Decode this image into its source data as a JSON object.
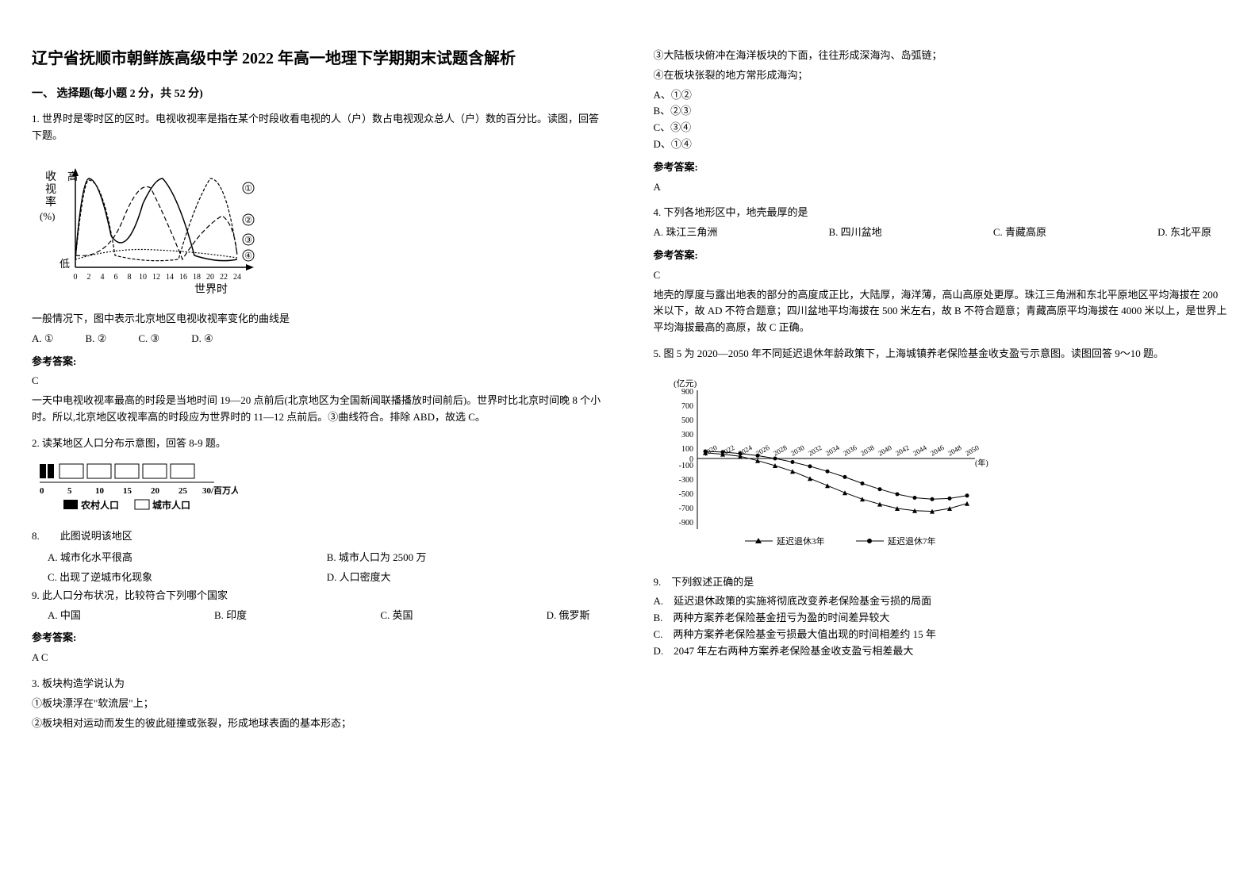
{
  "title": "辽宁省抚顺市朝鲜族高级中学 2022 年高一地理下学期期末试题含解析",
  "section1": {
    "header": "一、 选择题(每小题 2 分，共 52 分)"
  },
  "q1": {
    "intro": "1. 世界时是零时区的区时。电视收视率是指在某个时段收看电视的人（户）数占电视观众总人（户）数的百分比。读图，回答下题。",
    "chart": {
      "ylabel_line1": "收",
      "ylabel_line2": "视",
      "ylabel_line3": "率",
      "ylabel_unit": "(%)",
      "y_high": "高",
      "y_low": "低",
      "xlabel": "世界时",
      "xticks": [
        "0",
        "2",
        "4",
        "6",
        "8",
        "10",
        "12",
        "14",
        "16",
        "18",
        "20",
        "22",
        "24"
      ],
      "curves": {
        "curve1_label": "①",
        "curve2_label": "②",
        "curve3_label": "③",
        "curve4_label": "④"
      },
      "stroke_color": "#000000",
      "dash_patterns": [
        "4,2",
        "6,3",
        "none",
        "2,2"
      ],
      "line_width": 1.2
    },
    "question": "一般情况下，图中表示北京地区电视收视率变化的曲线是",
    "options": {
      "a": "A. ①",
      "b": "B. ②",
      "c": "C. ③",
      "d": "D. ④"
    },
    "answer_label": "参考答案:",
    "answer": "C",
    "explanation": "一天中电视收视率最高的时段是当地时间 19—20 点前后(北京地区为全国新闻联播播放时间前后)。世界时比北京时间晚 8 个小时。所以,北京地区收视率高的时段应为世界时的 11—12 点前后。③曲线符合。排除 ABD，故选 C。"
  },
  "q2": {
    "intro": "2. 读某地区人口分布示意图，回答 8-9 题。",
    "chart": {
      "xticks": [
        "0",
        "5",
        "10",
        "15",
        "20",
        "25",
        "30/百万人"
      ],
      "legend_rural": "农村人口",
      "legend_urban": "城市人口",
      "rural_value": 3,
      "urban_value": 27,
      "rural_color": "#000000",
      "urban_color": "#ffffff",
      "border_color": "#000000"
    },
    "q8": {
      "text": "8.　　此图说明该地区",
      "options": {
        "a": "A. 城市化水平很高",
        "b": "B. 城市人口为 2500 万",
        "c": "C. 出现了逆城市化现象",
        "d": "D. 人口密度大"
      }
    },
    "q9": {
      "text": "9. 此人口分布状况，比较符合下列哪个国家",
      "options": {
        "a": "A. 中国",
        "b": "B. 印度",
        "c": "C. 英国",
        "d": "D. 俄罗斯"
      }
    },
    "answer_label": "参考答案:",
    "answer": "A  C"
  },
  "q3": {
    "intro": "3. 板块构造学说认为",
    "stmt1": "①板块漂浮在\"软流层\"上；",
    "stmt2": "②板块相对运动而发生的彼此碰撞或张裂，形成地球表面的基本形态；",
    "stmt3": "③大陆板块俯冲在海洋板块的下面，往往形成深海沟、岛弧链；",
    "stmt4": "④在板块张裂的地方常形成海沟；",
    "options": {
      "a": "A、①②",
      "b": "B、②③",
      "c": "C、③④",
      "d": "D、①④"
    },
    "answer_label": "参考答案:",
    "answer": "A"
  },
  "q4": {
    "intro": "4. 下列各地形区中，地壳最厚的是",
    "options": {
      "a": "A. 珠江三角洲",
      "b": "B. 四川盆地",
      "c": "C. 青藏高原",
      "d": "D. 东北平原"
    },
    "answer_label": "参考答案:",
    "answer": "C",
    "explanation": "地壳的厚度与露出地表的部分的高度成正比，大陆厚，海洋薄，高山高原处更厚。珠江三角洲和东北平原地区平均海拔在 200 米以下，故 AD 不符合题意；四川盆地平均海拔在 500 米左右，故 B 不符合题意；青藏高原平均海拔在 4000 米以上，是世界上平均海拔最高的高原，故 C 正确。"
  },
  "q5": {
    "intro": "5. 图 5 为 2020—2050 年不同延迟退休年龄政策下，上海城镇养老保险基金收支盈亏示意图。读图回答 9～10 题。",
    "chart": {
      "ylabel": "(亿元)",
      "yticks": [
        "900",
        "700",
        "500",
        "300",
        "100",
        "0",
        "-100",
        "-300",
        "-500",
        "-700",
        "-900"
      ],
      "xticks": [
        "2020",
        "2022",
        "2024",
        "2026",
        "2028",
        "2030",
        "2032",
        "2034",
        "2036",
        "2038",
        "2040",
        "2042",
        "2044",
        "2046",
        "2048",
        "2050"
      ],
      "xlabel_suffix": "(年)",
      "legend_series1": "延迟退休3年",
      "legend_series2": "延迟退休7年",
      "series1_marker": "triangle",
      "series2_marker": "circle",
      "series1_data": [
        80,
        60,
        30,
        -30,
        -100,
        -180,
        -280,
        -380,
        -480,
        -570,
        -640,
        -700,
        -730,
        -740,
        -700,
        -630
      ],
      "series2_data": [
        100,
        90,
        70,
        40,
        0,
        -50,
        -110,
        -180,
        -260,
        -350,
        -430,
        -500,
        -550,
        -570,
        -560,
        -520
      ],
      "stroke_color": "#000000",
      "grid_color": "#cccccc",
      "line_width": 1
    },
    "q9": {
      "text": "9.　下列叙述正确的是",
      "options": {
        "a": "A.　延迟退休政策的实施将彻底改变养老保险基金亏损的局面",
        "b": "B.　两种方案养老保险基金扭亏为盈的时间差异较大",
        "c": "C.　两种方案养老保险基金亏损最大值出现的时间相差约 15 年",
        "d": "D.　2047 年左右两种方案养老保险基金收支盈亏相差最大"
      }
    }
  }
}
